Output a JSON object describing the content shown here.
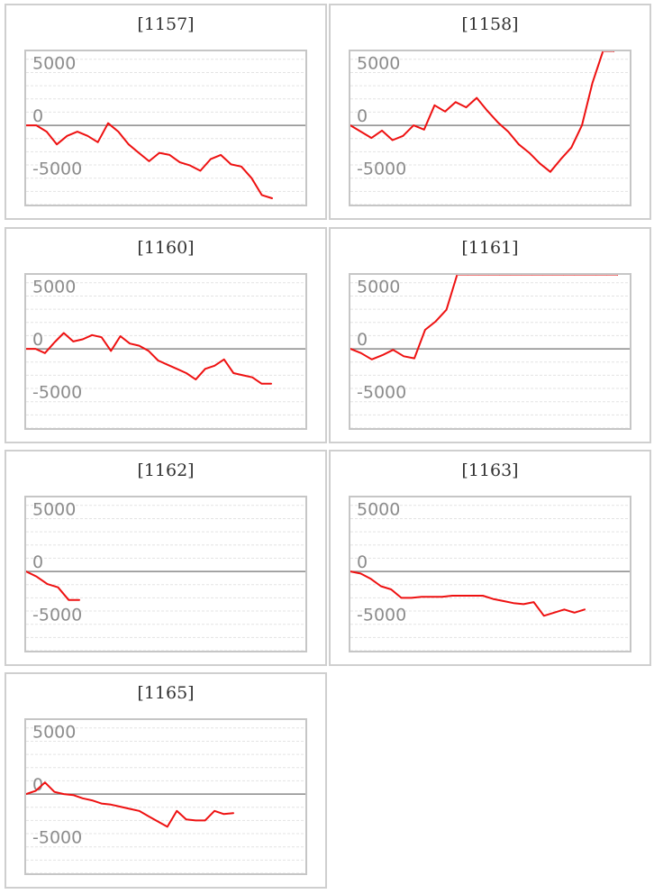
{
  "colors": {
    "series": "#ee1111",
    "clip": "#f08080"
  },
  "chart_data": [
    {
      "type": "line",
      "title": "[1157]",
      "ylim": [
        -7500,
        7000
      ],
      "yticks": [
        5000,
        0,
        -5000
      ],
      "ytick_labels": [
        "5000",
        "0",
        "-5000"
      ],
      "grid": true,
      "legend": "none",
      "series": [
        {
          "x": [
            0,
            1,
            2,
            3,
            4,
            5,
            6,
            7,
            8,
            9,
            10,
            11,
            12,
            13,
            14,
            15,
            16,
            17,
            18,
            19,
            20,
            21,
            22,
            23,
            24
          ],
          "values": [
            0,
            0,
            -600,
            -1800,
            -1000,
            -600,
            -1000,
            -1600,
            200,
            -600,
            -1800,
            -2600,
            -3400,
            -2600,
            -2800,
            -3500,
            -3800,
            -4300,
            -3200,
            -2800,
            -3700,
            -3900,
            -5000,
            -6600,
            -6900
          ]
        }
      ]
    },
    {
      "type": "line",
      "title": "[1158]",
      "ylim": [
        -7500,
        7000
      ],
      "yticks": [
        5000,
        0,
        -5000
      ],
      "ytick_labels": [
        "5000",
        "0",
        "-5000"
      ],
      "grid": true,
      "legend": "none",
      "series": [
        {
          "x": [
            0,
            1,
            2,
            3,
            4,
            5,
            6,
            7,
            8,
            9,
            10,
            11,
            12,
            13,
            14,
            15,
            16,
            17,
            18,
            19,
            20,
            21,
            22,
            23,
            24,
            25
          ],
          "values": [
            0,
            -600,
            -1200,
            -500,
            -1400,
            -1000,
            0,
            -400,
            1900,
            1300,
            2200,
            1700,
            2600,
            1400,
            300,
            -600,
            -1800,
            -2600,
            -3600,
            -4400,
            -3200,
            -2100,
            0,
            4000,
            7000,
            7000
          ]
        }
      ]
    },
    {
      "type": "line",
      "title": "[1160]",
      "ylim": [
        -7500,
        7000
      ],
      "yticks": [
        5000,
        0,
        -5000
      ],
      "ytick_labels": [
        "5000",
        "0",
        "-5000"
      ],
      "grid": true,
      "legend": "none",
      "series": [
        {
          "x": [
            0,
            1,
            2,
            3,
            4,
            5,
            6,
            7,
            8,
            9,
            10,
            11,
            12,
            13,
            14,
            15,
            16,
            17,
            18,
            19,
            20,
            21,
            22,
            23,
            24,
            25,
            26
          ],
          "values": [
            0,
            0,
            -400,
            600,
            1500,
            700,
            900,
            1300,
            1100,
            -200,
            1200,
            500,
            300,
            -200,
            -1100,
            -1500,
            -1900,
            -2300,
            -2900,
            -1900,
            -1600,
            -1000,
            -2300,
            -2500,
            -2700,
            -3300,
            -3300
          ]
        }
      ]
    },
    {
      "type": "line",
      "title": "[1161]",
      "ylim": [
        -7500,
        7000
      ],
      "yticks": [
        5000,
        0,
        -5000
      ],
      "ytick_labels": [
        "5000",
        "0",
        "-5000"
      ],
      "grid": true,
      "legend": "none",
      "series": [
        {
          "x": [
            0,
            1,
            2,
            3,
            4,
            5,
            6,
            7,
            8,
            9,
            10,
            11,
            12,
            13,
            14,
            15,
            16,
            17,
            18,
            19,
            20,
            21,
            22,
            23,
            24,
            25
          ],
          "values": [
            0,
            -400,
            -1000,
            -600,
            -100,
            -700,
            -900,
            1800,
            2600,
            3700,
            7000,
            7000,
            7000,
            7000,
            7000,
            7000,
            7000,
            7000,
            7000,
            7000,
            7000,
            7000,
            7000,
            7000,
            7000,
            7000
          ]
        }
      ]
    },
    {
      "type": "line",
      "title": "[1162]",
      "ylim": [
        -7500,
        7000
      ],
      "yticks": [
        5000,
        0,
        -5000
      ],
      "ytick_labels": [
        "5000",
        "0",
        "-5000"
      ],
      "grid": true,
      "legend": "none",
      "series": [
        {
          "x": [
            0,
            1,
            2,
            3,
            4,
            5
          ],
          "values": [
            0,
            -500,
            -1200,
            -1500,
            -2700,
            -2700
          ]
        }
      ]
    },
    {
      "type": "line",
      "title": "[1163]",
      "ylim": [
        -7500,
        7000
      ],
      "yticks": [
        5000,
        0,
        -5000
      ],
      "ytick_labels": [
        "5000",
        "0",
        "-5000"
      ],
      "grid": true,
      "legend": "none",
      "series": [
        {
          "x": [
            0,
            1,
            2,
            3,
            4,
            5,
            6,
            7,
            8,
            9,
            10,
            11,
            12,
            13,
            14,
            15,
            16,
            17,
            18,
            19,
            20,
            21,
            22,
            23
          ],
          "values": [
            0,
            -200,
            -700,
            -1400,
            -1700,
            -2500,
            -2500,
            -2400,
            -2400,
            -2400,
            -2300,
            -2300,
            -2300,
            -2300,
            -2600,
            -2800,
            -3000,
            -3100,
            -2900,
            -4200,
            -3900,
            -3600,
            -3900,
            -3600
          ]
        }
      ]
    },
    {
      "type": "line",
      "title": "[1165]",
      "ylim": [
        -7500,
        7000
      ],
      "yticks": [
        5000,
        0,
        -5000
      ],
      "ytick_labels": [
        "5000",
        "0",
        "-5000"
      ],
      "grid": true,
      "legend": "none",
      "series": [
        {
          "x": [
            0,
            1,
            2,
            3,
            4,
            5,
            6,
            7,
            8,
            9,
            10,
            11,
            12,
            13,
            14,
            15,
            16,
            17,
            18,
            19,
            20,
            21,
            22
          ],
          "values": [
            0,
            300,
            1100,
            200,
            0,
            -100,
            -400,
            -600,
            -900,
            -1000,
            -1200,
            -1400,
            -1600,
            -2100,
            -2600,
            -3100,
            -1600,
            -2400,
            -2500,
            -2500,
            -1600,
            -1900,
            -1800
          ]
        }
      ]
    }
  ]
}
